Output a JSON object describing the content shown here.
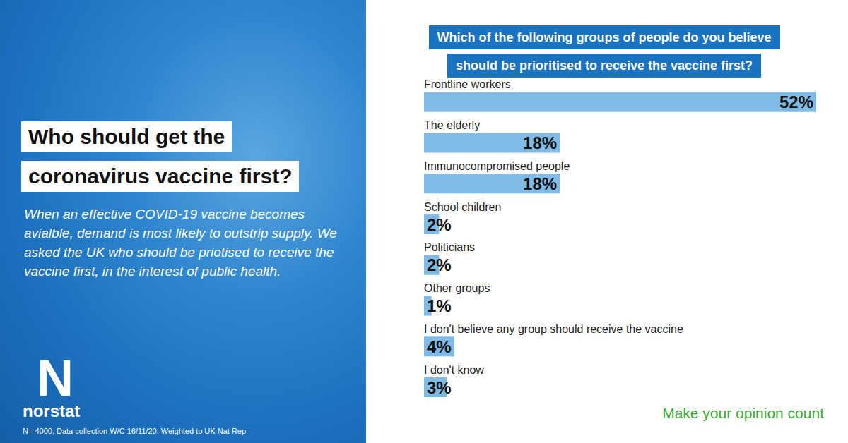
{
  "panel": {
    "title": "Who should get the coronavirus vaccine first?",
    "intro": "When an effective COVID-19 vaccine becomes avialble, demand is most likely to outstrip supply. We asked the UK who should be priotised to receive the vaccine first, in the interest of public health.",
    "logo": "N",
    "brand": "norstat",
    "footnote": "N= 4000. Data collection W/C 16/11/20. Weighted to UK Nat Rep"
  },
  "tagline": "Make your opinion count",
  "chart_data": {
    "type": "bar",
    "orientation": "horizontal",
    "title": "Which of the following groups of people do you believe should be prioritised to receive the vaccine first?",
    "categories": [
      "Frontline workers",
      "The elderly",
      "Immunocompromised people",
      "School children",
      "Politicians",
      "Other groups",
      "I don't believe any group should receive the vaccine",
      "I don't know"
    ],
    "values": [
      52,
      18,
      18,
      2,
      2,
      1,
      4,
      3
    ],
    "value_labels": [
      "52%",
      "18%",
      "18%",
      "2%",
      "2%",
      "1%",
      "4%",
      "3%"
    ],
    "data_labels": true,
    "color": "#80bbe6",
    "xlim": [
      0,
      52
    ],
    "tick_labels": false,
    "grid": false
  }
}
